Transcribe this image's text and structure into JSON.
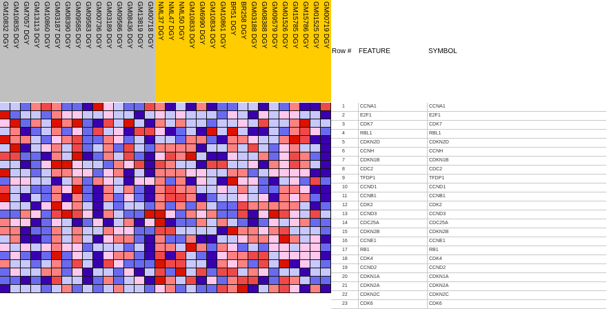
{
  "group_colors": {
    "group1": "#c0c0c0",
    "group2": "#ffcc00"
  },
  "palette": {
    "-3": "#3a00b0",
    "-2": "#6a6af0",
    "-1": "#c8c8ff",
    "0": "#ffc8ec",
    "1": "#ff8080",
    "2": "#f04848",
    "3": "#dd1100"
  },
  "columns": [
    {
      "label": "GM10832 DGY",
      "group": "group1"
    },
    {
      "label": "GM10835 DGY",
      "group": "group1"
    },
    {
      "label": "GM7057 DGY",
      "group": "group1"
    },
    {
      "label": "GM13113 DGY",
      "group": "group1"
    },
    {
      "label": "GM10860 DGY",
      "group": "group1"
    },
    {
      "label": "GM03187 DGY",
      "group": "group1"
    },
    {
      "label": "GM08390 DGY",
      "group": "group1"
    },
    {
      "label": "GM09585 DGY",
      "group": "group1"
    },
    {
      "label": "GM09583 DGY",
      "group": "group1"
    },
    {
      "label": "GM00736 DGY",
      "group": "group1"
    },
    {
      "label": "GM03189 DGY",
      "group": "group1"
    },
    {
      "label": "GM09586 DGY",
      "group": "group1"
    },
    {
      "label": "GM08436 DGY",
      "group": "group1"
    },
    {
      "label": "GM13819 DGY",
      "group": "group1"
    },
    {
      "label": "GM00718 DGY",
      "group": "group1"
    },
    {
      "label": "NML37 DGY",
      "group": "group2"
    },
    {
      "label": "NML47 DGY",
      "group": "group2"
    },
    {
      "label": "NML50 DGY",
      "group": "group2"
    },
    {
      "label": "GM10833 DGY",
      "group": "group2"
    },
    {
      "label": "GM6990 DGY",
      "group": "group2"
    },
    {
      "label": "GM10834 DGY",
      "group": "group2"
    },
    {
      "label": "GM10861 DGY",
      "group": "group2"
    },
    {
      "label": "BR51 DGY",
      "group": "group2"
    },
    {
      "label": "BR258 DGY",
      "group": "group2"
    },
    {
      "label": "GM03188 DGY",
      "group": "group2"
    },
    {
      "label": "GM08388 DGY",
      "group": "group2"
    },
    {
      "label": "GM09579 DGY",
      "group": "group2"
    },
    {
      "label": "GM01526 DGY",
      "group": "group2"
    },
    {
      "label": "GM15785 DGY",
      "group": "group2"
    },
    {
      "label": "GM15786 DGY",
      "group": "group2"
    },
    {
      "label": "GM01525 DGY",
      "group": "group2"
    },
    {
      "label": "GM00719 DGY",
      "group": "group2"
    }
  ],
  "table": {
    "row_header": "Row #",
    "feature_header": "FEATURE",
    "symbol_header": "SYMBOL"
  },
  "rows": [
    {
      "n": "1",
      "feature": "CCNA1",
      "symbol": "CCNA1",
      "values": [
        -1,
        -1,
        -2,
        1,
        2,
        1,
        -2,
        -2,
        -3,
        3,
        0,
        -1,
        -2,
        -2,
        2,
        1,
        -3,
        -1,
        -3,
        1,
        -3,
        -2,
        -2,
        -1,
        -1,
        -3,
        -1,
        -2,
        1,
        -3,
        -3,
        2
      ]
    },
    {
      "n": "2",
      "feature": "E2F1",
      "symbol": "E2F1",
      "values": [
        3,
        -2,
        -1,
        -1,
        -2,
        1,
        0,
        0,
        -1,
        -1,
        0,
        -1,
        -1,
        -3,
        -1,
        0,
        -1,
        0,
        -1,
        -1,
        -1,
        -2,
        0,
        -1,
        -3,
        0,
        -1,
        0,
        0,
        -1,
        -1,
        -3
      ]
    },
    {
      "n": "3",
      "feature": "CDK7",
      "symbol": "CDK7",
      "values": [
        0,
        3,
        -2,
        1,
        -1,
        3,
        1,
        3,
        -2,
        -3,
        2,
        -1,
        3,
        -1,
        -3,
        1,
        -1,
        1,
        -1,
        -1,
        -2,
        -1,
        -1,
        0,
        -1,
        2,
        -1,
        -1,
        1,
        3,
        -1,
        -1
      ]
    },
    {
      "n": "4",
      "feature": "RBL1",
      "symbol": "RBL1",
      "values": [
        -1,
        1,
        -3,
        -2,
        -1,
        1,
        -2,
        0,
        -2,
        2,
        -1,
        0,
        -3,
        2,
        2,
        0,
        -3,
        -2,
        -1,
        -3,
        3,
        -1,
        3,
        -1,
        -3,
        -3,
        -1,
        -2,
        1,
        2,
        0,
        -2
      ]
    },
    {
      "n": "5",
      "feature": "CDKN2D",
      "symbol": "CDKN2D",
      "values": [
        3,
        1,
        1,
        -1,
        -2,
        0,
        1,
        2,
        -2,
        -2,
        1,
        0,
        -2,
        -1,
        -3,
        -1,
        -1,
        -2,
        1,
        1,
        -2,
        -3,
        1,
        1,
        0,
        -1,
        -1,
        1,
        3,
        2,
        -3,
        -3
      ]
    },
    {
      "n": "6",
      "feature": "CCNH",
      "symbol": "CCNH",
      "values": [
        -1,
        3,
        -3,
        -1,
        0,
        1,
        -1,
        2,
        -2,
        -1,
        1,
        -2,
        2,
        -1,
        -2,
        1,
        1,
        1,
        1,
        -3,
        -1,
        -1,
        1,
        -1,
        2,
        -1,
        -2,
        0,
        1,
        -1,
        -1,
        -3
      ]
    },
    {
      "n": "7",
      "feature": "CDKN1B",
      "symbol": "CDKN1B",
      "values": [
        2,
        2,
        -2,
        -2,
        -3,
        1,
        -1,
        3,
        -3,
        -2,
        1,
        -1,
        2,
        -2,
        -3,
        0,
        2,
        1,
        3,
        -1,
        -3,
        -3,
        0,
        -1,
        -1,
        1,
        -2,
        0,
        2,
        1,
        -2,
        -3
      ]
    },
    {
      "n": "8",
      "feature": "CDC2",
      "symbol": "CDC2",
      "values": [
        -1,
        -1,
        -3,
        -2,
        0,
        3,
        3,
        0,
        -1,
        -1,
        -2,
        1,
        0,
        2,
        -3,
        2,
        1,
        -1,
        -1,
        -3,
        2,
        2,
        -1,
        -1,
        0,
        -3,
        1,
        0,
        2,
        1,
        -1,
        -3
      ]
    },
    {
      "n": "9",
      "feature": "TFDP1",
      "symbol": "TFDP1",
      "values": [
        3,
        -1,
        -1,
        -2,
        -1,
        1,
        1,
        0,
        0,
        -2,
        0,
        1,
        -3,
        -1,
        -3,
        1,
        1,
        1,
        0,
        0,
        -1,
        -1,
        1,
        1,
        -2,
        -1,
        0,
        0,
        0,
        0,
        -3,
        -3
      ]
    },
    {
      "n": "10",
      "feature": "CCND1",
      "symbol": "CCND1",
      "values": [
        -2,
        0,
        0,
        -1,
        -1,
        -3,
        -1,
        1,
        -2,
        1,
        0,
        -1,
        -3,
        0,
        0,
        1,
        -2,
        1,
        -3,
        0,
        -1,
        -3,
        3,
        0,
        0,
        -2,
        -3,
        -1,
        0,
        -2,
        2,
        -2
      ]
    },
    {
      "n": "11",
      "feature": "CCNB1",
      "symbol": "CCNB1",
      "values": [
        2,
        -1,
        -1,
        -2,
        -2,
        1,
        0,
        3,
        -2,
        -3,
        1,
        -1,
        1,
        -2,
        -3,
        1,
        2,
        1,
        1,
        -1,
        -1,
        0,
        -1,
        1,
        -1,
        -2,
        -2,
        1,
        1,
        0,
        -3,
        -3
      ]
    },
    {
      "n": "12",
      "feature": "CDK2",
      "symbol": "CDK2",
      "values": [
        3,
        -1,
        -3,
        -1,
        -2,
        1,
        -3,
        1,
        -2,
        -3,
        1,
        -2,
        0,
        -2,
        -3,
        1,
        2,
        2,
        1,
        -3,
        -2,
        -1,
        -1,
        0,
        -1,
        0,
        -3,
        1,
        0,
        1,
        -2,
        -3
      ]
    },
    {
      "n": "13",
      "feature": "CCND3",
      "symbol": "CCND3",
      "values": [
        0,
        -1,
        -1,
        -3,
        0,
        3,
        0,
        1,
        -1,
        -3,
        -1,
        -2,
        -1,
        -1,
        -2,
        1,
        -2,
        1,
        -2,
        1,
        -1,
        -2,
        -2,
        2,
        1,
        1,
        1,
        1,
        1,
        -1,
        -3,
        -2
      ]
    },
    {
      "n": "14",
      "feature": "CDC25A",
      "symbol": "CDC25A",
      "values": [
        -2,
        -2,
        1,
        0,
        -2,
        2,
        3,
        2,
        0,
        -3,
        1,
        -1,
        -2,
        -2,
        3,
        3,
        0,
        -2,
        1,
        0,
        1,
        -2,
        -2,
        2,
        -3,
        0,
        3,
        2,
        0,
        -1,
        2,
        -1
      ]
    },
    {
      "n": "15",
      "feature": "CDKN2B",
      "symbol": "CDKN2B",
      "values": [
        1,
        0,
        0,
        -3,
        -2,
        0,
        -1,
        -3,
        -2,
        0,
        -3,
        -1,
        1,
        -3,
        0,
        3,
        -3,
        -2,
        -2,
        1,
        -1,
        1,
        -1,
        -2,
        -3,
        -2,
        0,
        -1,
        0,
        1,
        -2,
        -2
      ]
    },
    {
      "n": "16",
      "feature": "CCNE1",
      "symbol": "CCNE1",
      "values": [
        1,
        1,
        -3,
        -2,
        -2,
        1,
        -1,
        1,
        -1,
        -1,
        1,
        0,
        0,
        -2,
        -2,
        2,
        2,
        -1,
        -1,
        -1,
        -1,
        -3,
        3,
        1,
        1,
        0,
        1,
        2,
        -1,
        -1,
        -1,
        -2
      ]
    },
    {
      "n": "17",
      "feature": "RB1",
      "symbol": "RB1",
      "values": [
        -1,
        1,
        -3,
        -3,
        -2,
        1,
        -1,
        1,
        -1,
        -3,
        0,
        1,
        1,
        -2,
        -3,
        1,
        -2,
        -2,
        1,
        -3,
        -3,
        -1,
        -1,
        0,
        1,
        1,
        0,
        3,
        1,
        -1,
        0,
        -3
      ]
    },
    {
      "n": "18",
      "feature": "CDK4",
      "symbol": "CDK4",
      "values": [
        0,
        -1,
        0,
        -1,
        0,
        1,
        0,
        0,
        -2,
        -1,
        -1,
        -1,
        -2,
        -1,
        -3,
        1,
        1,
        -1,
        3,
        1,
        -2,
        1,
        0,
        -2,
        -1,
        -2,
        0,
        0,
        -1,
        0,
        0,
        -2
      ]
    },
    {
      "n": "19",
      "feature": "CCND2",
      "symbol": "CCND2",
      "values": [
        -2,
        0,
        -2,
        -3,
        -2,
        3,
        -2,
        0,
        -1,
        -3,
        0,
        1,
        1,
        -2,
        -3,
        2,
        -3,
        2,
        -1,
        -2,
        -3,
        0,
        1,
        1,
        2,
        2,
        -1,
        0,
        0,
        0,
        0,
        -3
      ]
    },
    {
      "n": "20",
      "feature": "CDKN1A",
      "symbol": "CDKN1A",
      "values": [
        1,
        -1,
        -1,
        -2,
        -1,
        1,
        -2,
        2,
        -1,
        -3,
        2,
        0,
        -2,
        -2,
        -2,
        3,
        2,
        2,
        -1,
        -1,
        -3,
        1,
        0,
        1,
        -2,
        2,
        -1,
        3,
        -3,
        0,
        -1,
        -2
      ]
    },
    {
      "n": "21",
      "feature": "CDKN2A",
      "symbol": "CDKN2A",
      "values": [
        -2,
        0,
        -1,
        -1,
        1,
        1,
        -2,
        0,
        -3,
        -1,
        -1,
        -2,
        0,
        -3,
        -1,
        2,
        -2,
        3,
        -1,
        2,
        -2,
        2,
        2,
        -1,
        1,
        0,
        -2,
        -1,
        -1,
        -3,
        -1,
        -1
      ]
    },
    {
      "n": "22",
      "feature": "CDKN2C",
      "symbol": "CDKN2C",
      "values": [
        -2,
        -2,
        -3,
        -2,
        -3,
        2,
        -1,
        -1,
        -3,
        -2,
        1,
        -2,
        -1,
        0,
        -3,
        3,
        1,
        -1,
        2,
        -3,
        0,
        -2,
        1,
        2,
        2,
        -3,
        -2,
        2,
        1,
        -1,
        -2,
        -2
      ]
    },
    {
      "n": "23",
      "feature": "CDK6",
      "symbol": "CDK6",
      "values": [
        -3,
        -1,
        -1,
        -1,
        -2,
        -1,
        1,
        -2,
        -1,
        -2,
        -1,
        1,
        -1,
        -1,
        -2,
        0,
        1,
        -2,
        -1,
        -2,
        -2,
        2,
        1,
        3,
        -3,
        -1,
        1,
        2,
        0,
        -3,
        1,
        -3
      ]
    }
  ]
}
